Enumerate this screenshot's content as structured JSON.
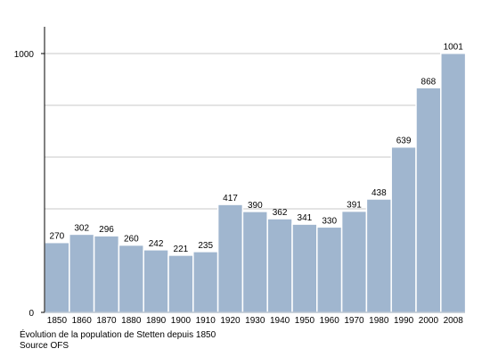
{
  "chart_data": {
    "type": "bar",
    "categories": [
      "1850",
      "1860",
      "1870",
      "1880",
      "1890",
      "1900",
      "1910",
      "1920",
      "1930",
      "1940",
      "1950",
      "1960",
      "1970",
      "1980",
      "1990",
      "2000",
      "2008"
    ],
    "values": [
      270,
      302,
      296,
      260,
      242,
      221,
      235,
      417,
      390,
      362,
      341,
      330,
      391,
      438,
      639,
      868,
      1001
    ],
    "yticks": [
      "0",
      "1000"
    ],
    "ylim": [
      0,
      1100
    ],
    "grid": true,
    "bar_color": "#a0b6cf",
    "bar_edge_color": "#ffffff",
    "grid_color": "#c8c8c8",
    "title": "",
    "xlabel": "",
    "ylabel": ""
  },
  "caption": {
    "line1": "Évolution de la population de Stetten depuis 1850",
    "line2": "Source OFS"
  }
}
